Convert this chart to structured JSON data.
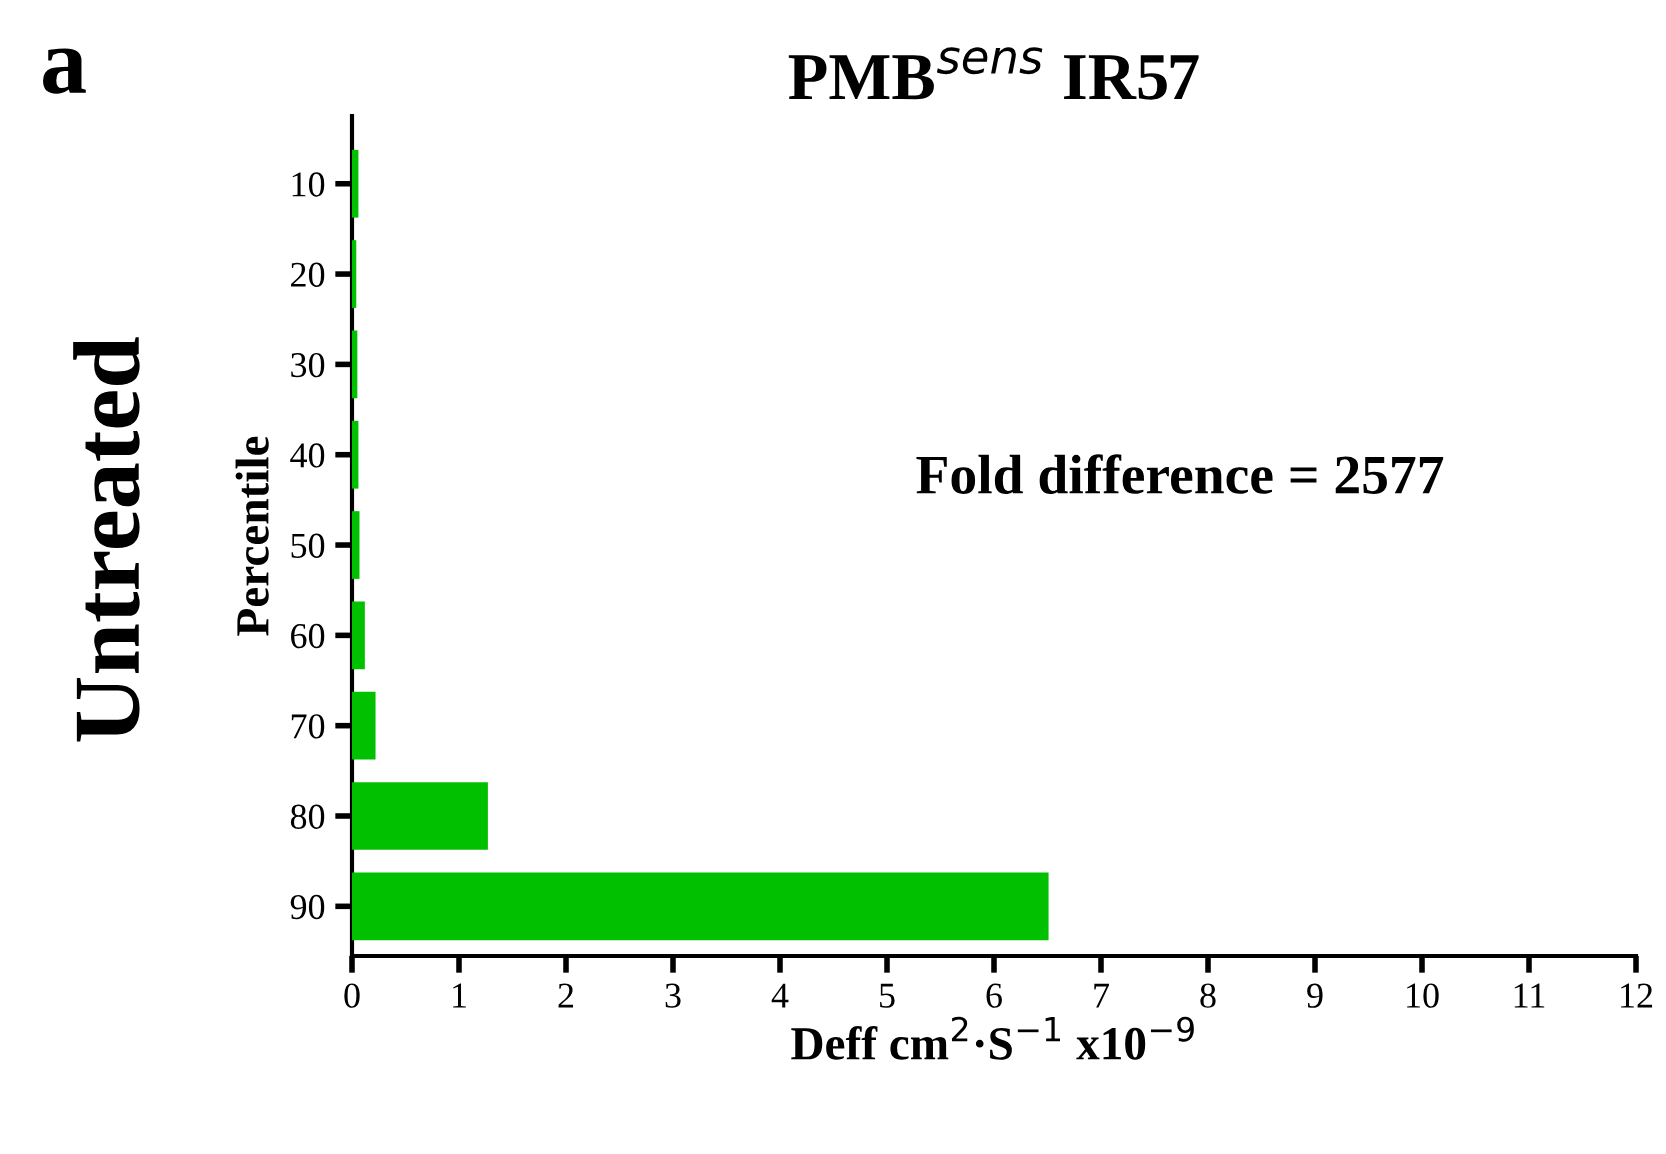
{
  "chart_data": {
    "type": "bar",
    "orientation": "horizontal",
    "title": "PMB$^{sens}$ IR57",
    "xlabel": "Deff cm$^{2}$·S$^{−1}$ x10$^{−9}$",
    "ylabel": "Percentile",
    "categories": [
      "10",
      "20",
      "30",
      "40",
      "50",
      "60",
      "70",
      "80",
      "90"
    ],
    "values": [
      0.06,
      0.04,
      0.05,
      0.06,
      0.07,
      0.12,
      0.22,
      1.27,
      6.51
    ],
    "color": "#00c000",
    "xlim": [
      0,
      12
    ],
    "xticks": [
      0,
      1,
      2,
      3,
      4,
      5,
      6,
      7,
      8,
      9,
      10,
      11,
      12
    ],
    "annotations": [
      "a",
      "Untreated",
      "Fold difference = 2577"
    ],
    "grid": false
  }
}
